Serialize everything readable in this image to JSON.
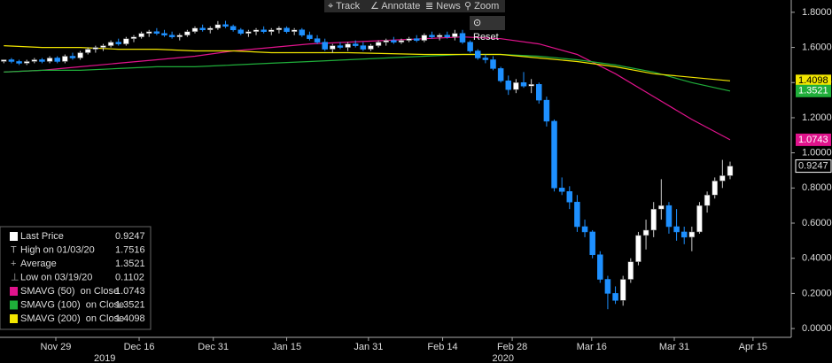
{
  "toolbar": [
    "Track",
    "Annotate",
    "News",
    "Zoom"
  ],
  "reset": "Reset",
  "chart_data": {
    "type": "candlestick",
    "ohlc": [
      [
        1.52,
        1.53,
        1.51,
        1.53
      ],
      [
        1.53,
        1.54,
        1.51,
        1.52
      ],
      [
        1.52,
        1.53,
        1.5,
        1.51
      ],
      [
        1.51,
        1.53,
        1.5,
        1.52
      ],
      [
        1.52,
        1.54,
        1.51,
        1.53
      ],
      [
        1.53,
        1.54,
        1.51,
        1.52
      ],
      [
        1.52,
        1.55,
        1.51,
        1.54
      ],
      [
        1.54,
        1.55,
        1.51,
        1.52
      ],
      [
        1.52,
        1.56,
        1.51,
        1.55
      ],
      [
        1.55,
        1.57,
        1.53,
        1.54
      ],
      [
        1.54,
        1.58,
        1.53,
        1.57
      ],
      [
        1.57,
        1.6,
        1.56,
        1.59
      ],
      [
        1.59,
        1.61,
        1.57,
        1.6
      ],
      [
        1.6,
        1.62,
        1.58,
        1.61
      ],
      [
        1.61,
        1.64,
        1.6,
        1.63
      ],
      [
        1.63,
        1.65,
        1.61,
        1.62
      ],
      [
        1.62,
        1.66,
        1.61,
        1.65
      ],
      [
        1.65,
        1.67,
        1.63,
        1.66
      ],
      [
        1.66,
        1.69,
        1.65,
        1.68
      ],
      [
        1.68,
        1.7,
        1.66,
        1.69
      ],
      [
        1.69,
        1.71,
        1.67,
        1.68
      ],
      [
        1.68,
        1.7,
        1.66,
        1.67
      ],
      [
        1.67,
        1.69,
        1.65,
        1.66
      ],
      [
        1.66,
        1.68,
        1.64,
        1.67
      ],
      [
        1.67,
        1.7,
        1.66,
        1.69
      ],
      [
        1.69,
        1.72,
        1.68,
        1.71
      ],
      [
        1.71,
        1.73,
        1.69,
        1.7
      ],
      [
        1.7,
        1.72,
        1.68,
        1.71
      ],
      [
        1.71,
        1.75,
        1.7,
        1.73
      ],
      [
        1.73,
        1.7516,
        1.71,
        1.72
      ],
      [
        1.72,
        1.73,
        1.69,
        1.7
      ],
      [
        1.7,
        1.71,
        1.67,
        1.68
      ],
      [
        1.68,
        1.7,
        1.66,
        1.69
      ],
      [
        1.69,
        1.71,
        1.67,
        1.7
      ],
      [
        1.7,
        1.72,
        1.68,
        1.69
      ],
      [
        1.69,
        1.71,
        1.67,
        1.7
      ],
      [
        1.7,
        1.72,
        1.68,
        1.71
      ],
      [
        1.71,
        1.72,
        1.68,
        1.69
      ],
      [
        1.69,
        1.71,
        1.67,
        1.7
      ],
      [
        1.7,
        1.71,
        1.66,
        1.67
      ],
      [
        1.67,
        1.69,
        1.64,
        1.65
      ],
      [
        1.65,
        1.67,
        1.62,
        1.63
      ],
      [
        1.63,
        1.65,
        1.58,
        1.59
      ],
      [
        1.59,
        1.62,
        1.57,
        1.61
      ],
      [
        1.61,
        1.63,
        1.59,
        1.6
      ],
      [
        1.6,
        1.63,
        1.58,
        1.62
      ],
      [
        1.62,
        1.64,
        1.6,
        1.61
      ],
      [
        1.61,
        1.63,
        1.58,
        1.59
      ],
      [
        1.59,
        1.62,
        1.58,
        1.61
      ],
      [
        1.61,
        1.64,
        1.6,
        1.63
      ],
      [
        1.63,
        1.65,
        1.61,
        1.64
      ],
      [
        1.64,
        1.66,
        1.62,
        1.63
      ],
      [
        1.63,
        1.65,
        1.62,
        1.64
      ],
      [
        1.64,
        1.66,
        1.63,
        1.65
      ],
      [
        1.65,
        1.67,
        1.63,
        1.64
      ],
      [
        1.64,
        1.68,
        1.63,
        1.67
      ],
      [
        1.67,
        1.69,
        1.65,
        1.66
      ],
      [
        1.66,
        1.68,
        1.64,
        1.67
      ],
      [
        1.67,
        1.69,
        1.65,
        1.66
      ],
      [
        1.66,
        1.7,
        1.64,
        1.68
      ],
      [
        1.68,
        1.7,
        1.62,
        1.63
      ],
      [
        1.63,
        1.64,
        1.57,
        1.58
      ],
      [
        1.58,
        1.59,
        1.53,
        1.54
      ],
      [
        1.54,
        1.56,
        1.51,
        1.53
      ],
      [
        1.53,
        1.55,
        1.47,
        1.48
      ],
      [
        1.48,
        1.49,
        1.4,
        1.41
      ],
      [
        1.41,
        1.44,
        1.33,
        1.36
      ],
      [
        1.36,
        1.42,
        1.34,
        1.4
      ],
      [
        1.4,
        1.46,
        1.37,
        1.38
      ],
      [
        1.38,
        1.42,
        1.34,
        1.39
      ],
      [
        1.39,
        1.4,
        1.28,
        1.3
      ],
      [
        1.3,
        1.32,
        1.15,
        1.18
      ],
      [
        1.18,
        1.19,
        0.78,
        0.8
      ],
      [
        0.8,
        0.86,
        0.76,
        0.78
      ],
      [
        0.78,
        0.81,
        0.68,
        0.72
      ],
      [
        0.72,
        0.76,
        0.55,
        0.58
      ],
      [
        0.58,
        0.62,
        0.52,
        0.55
      ],
      [
        0.55,
        0.56,
        0.4,
        0.42
      ],
      [
        0.42,
        0.44,
        0.26,
        0.28
      ],
      [
        0.28,
        0.3,
        0.1102,
        0.2
      ],
      [
        0.2,
        0.24,
        0.14,
        0.16
      ],
      [
        0.16,
        0.3,
        0.13,
        0.28
      ],
      [
        0.28,
        0.4,
        0.26,
        0.38
      ],
      [
        0.38,
        0.55,
        0.36,
        0.53
      ],
      [
        0.53,
        0.62,
        0.45,
        0.56
      ],
      [
        0.56,
        0.72,
        0.52,
        0.68
      ],
      [
        0.68,
        0.85,
        0.62,
        0.7
      ],
      [
        0.7,
        0.72,
        0.54,
        0.58
      ],
      [
        0.58,
        0.68,
        0.5,
        0.55
      ],
      [
        0.55,
        0.58,
        0.48,
        0.52
      ],
      [
        0.52,
        0.58,
        0.44,
        0.55
      ],
      [
        0.55,
        0.72,
        0.54,
        0.7
      ],
      [
        0.7,
        0.78,
        0.66,
        0.76
      ],
      [
        0.76,
        0.86,
        0.74,
        0.84
      ],
      [
        0.84,
        0.96,
        0.8,
        0.87
      ],
      [
        0.87,
        0.95,
        0.85,
        0.9247
      ]
    ],
    "up_color": "#ffffff",
    "down_color": "#1e90ff",
    "x": [
      0,
      5,
      10,
      15,
      20,
      25,
      30,
      35,
      40,
      45,
      50,
      55,
      60,
      65,
      70,
      75,
      80,
      85,
      90,
      95
    ],
    "series": [
      {
        "name": "SMAVG (50)  on Close",
        "color": "#e0138c",
        "values": [
          1.46,
          1.47,
          1.49,
          1.51,
          1.53,
          1.55,
          1.58,
          1.6,
          1.62,
          1.63,
          1.64,
          1.65,
          1.66,
          1.65,
          1.62,
          1.56,
          1.45,
          1.32,
          1.19,
          1.0743
        ]
      },
      {
        "name": "SMAVG (100)  on Close",
        "color": "#1fae3a",
        "values": [
          1.46,
          1.47,
          1.47,
          1.48,
          1.49,
          1.49,
          1.5,
          1.51,
          1.52,
          1.53,
          1.54,
          1.55,
          1.56,
          1.56,
          1.55,
          1.53,
          1.5,
          1.46,
          1.4,
          1.3521
        ]
      },
      {
        "name": "SMAVG (200)  on Close",
        "color": "#f2e600",
        "values": [
          1.61,
          1.6,
          1.6,
          1.59,
          1.59,
          1.58,
          1.58,
          1.57,
          1.57,
          1.57,
          1.565,
          1.56,
          1.56,
          1.56,
          1.54,
          1.52,
          1.49,
          1.45,
          1.43,
          1.4098
        ]
      }
    ],
    "legend": {
      "last": "Last Price",
      "high": "High on 01/03/20",
      "average": "Average",
      "average_value": 1.3521,
      "low": "Low on 03/19/20"
    },
    "xlim": [
      -0.5,
      103
    ],
    "xticks": [
      {
        "value": 6.8,
        "label": "Nov 29"
      },
      {
        "value": 17.7,
        "label": "Dec 16"
      },
      {
        "value": 27.4,
        "label": "Dec 31"
      },
      {
        "value": 37.0,
        "label": "Jan 15"
      },
      {
        "value": 47.7,
        "label": "Jan 31"
      },
      {
        "value": 57.4,
        "label": "Feb 14"
      },
      {
        "value": 66.5,
        "label": "Feb 28"
      },
      {
        "value": 76.9,
        "label": "Mar 16"
      },
      {
        "value": 87.7,
        "label": "Mar 31"
      },
      {
        "value": 98.0,
        "label": "Apr 15"
      }
    ],
    "years": [
      {
        "value": 13.2,
        "label": "2019"
      },
      {
        "value": 65.3,
        "label": "2020"
      }
    ],
    "ylim": [
      -0.05,
      1.87
    ],
    "yticks": [
      {
        "value": 0,
        "label": "0.0000"
      },
      {
        "value": 0.2,
        "label": "0.2000"
      },
      {
        "value": 0.4,
        "label": "0.4000"
      },
      {
        "value": 0.6,
        "label": "0.6000"
      },
      {
        "value": 0.8,
        "label": "0.8000"
      },
      {
        "value": 1,
        "label": "1.0000"
      },
      {
        "value": 1.2,
        "label": "1.2000"
      },
      {
        "value": 1.4,
        "label": "1.4000"
      },
      {
        "value": 1.6,
        "label": "1.6000"
      },
      {
        "value": 1.8,
        "label": "1.8000"
      }
    ]
  }
}
